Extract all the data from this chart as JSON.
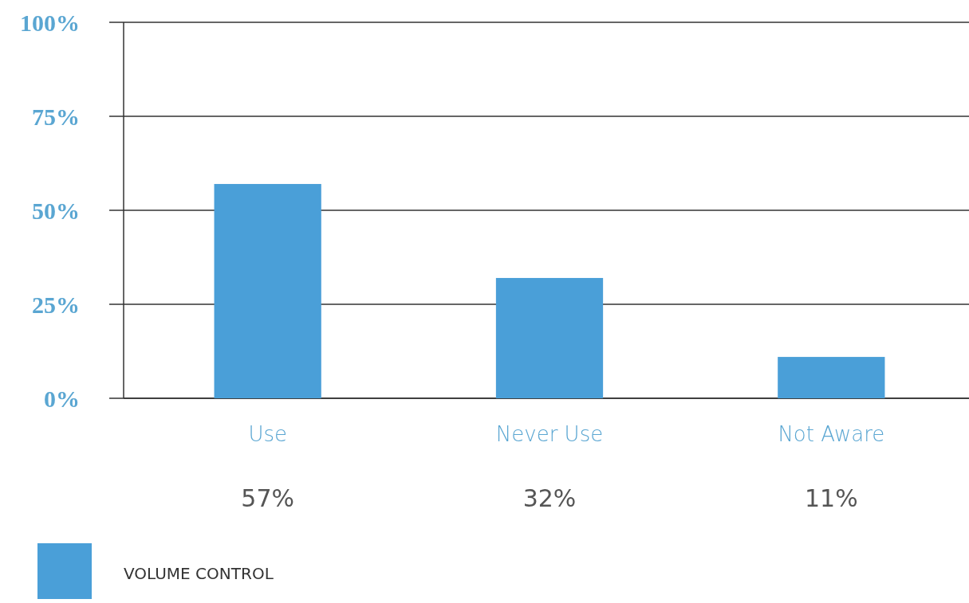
{
  "chart_data": {
    "type": "bar",
    "categories": [
      "Use",
      "Never Use",
      "Not Aware"
    ],
    "series": [
      {
        "name": "VOLUME CONTROL",
        "color": "#4a9fd8",
        "values": [
          57,
          32,
          11
        ],
        "value_labels": [
          "57%",
          "32%",
          "11%"
        ]
      }
    ],
    "ylim": [
      0,
      100
    ],
    "yticks": [
      {
        "value": 0,
        "label": "0%"
      },
      {
        "value": 25,
        "label": "25%"
      },
      {
        "value": 50,
        "label": "50%"
      },
      {
        "value": 75,
        "label": "75%"
      },
      {
        "value": 100,
        "label": "100%"
      }
    ],
    "grid": "y",
    "legend": "bottom left"
  }
}
